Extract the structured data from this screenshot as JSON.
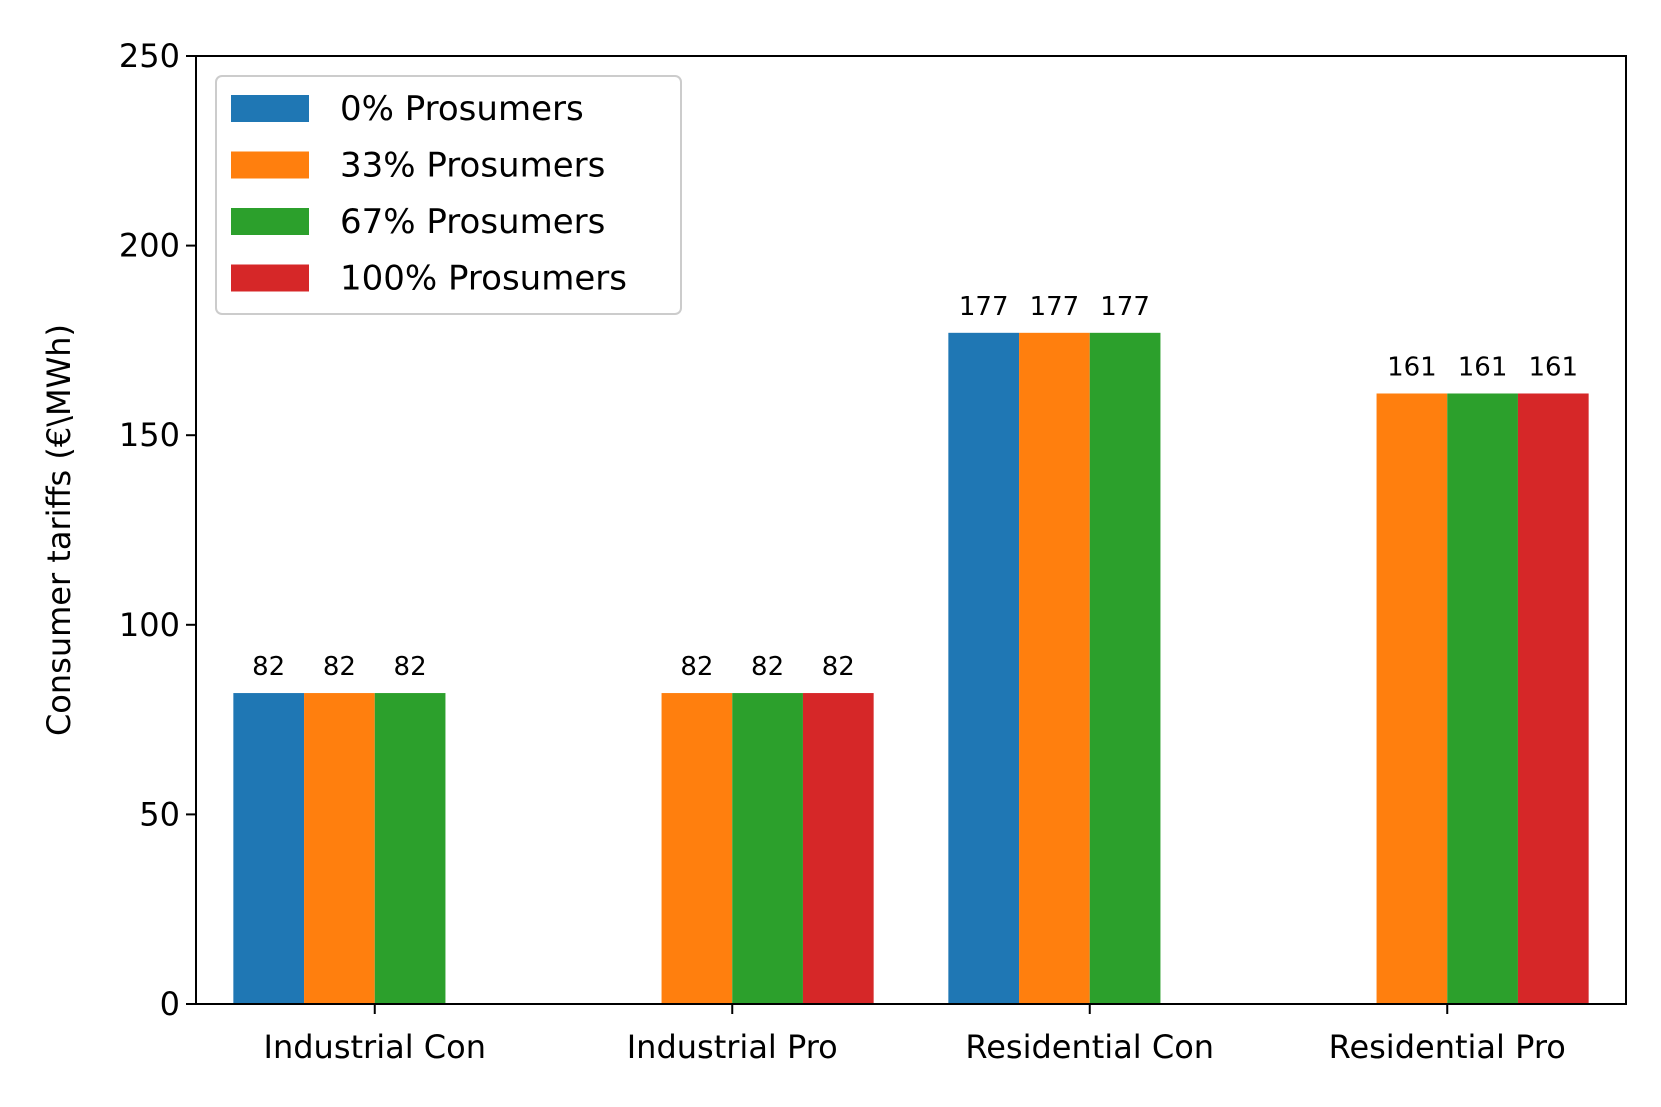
{
  "chart_data": {
    "type": "bar",
    "title": "",
    "xlabel": "",
    "ylabel": "Consumer tariffs (€\\MWh)",
    "ylim": [
      0,
      250
    ],
    "yticks": [
      0,
      50,
      100,
      150,
      200,
      250
    ],
    "categories": [
      "Industrial Con",
      "Industrial Pro",
      "Residential Con",
      "Residential Pro"
    ],
    "series": [
      {
        "name": "0% Prosumers",
        "color": "#1f77b4",
        "values": [
          82,
          null,
          177,
          null
        ]
      },
      {
        "name": "33% Prosumers",
        "color": "#ff7f0e",
        "values": [
          82,
          82,
          177,
          161
        ]
      },
      {
        "name": "67% Prosumers",
        "color": "#2ca02c",
        "values": [
          82,
          82,
          177,
          161
        ]
      },
      {
        "name": "100% Prosumers",
        "color": "#d62728",
        "values": [
          null,
          82,
          null,
          161
        ]
      }
    ],
    "legend_position": "top-left",
    "grid": false
  }
}
